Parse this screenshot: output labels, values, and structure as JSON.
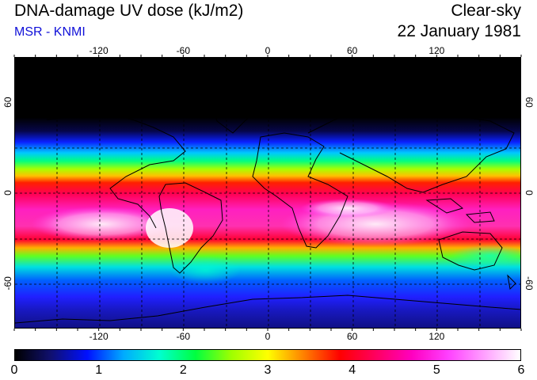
{
  "header": {
    "title": "DNA-damage UV dose (kJ/m2)",
    "credit": "MSR - KNMI",
    "sky_condition": "Clear-sky",
    "date": "22 January 1981"
  },
  "map": {
    "longitude_ticks": [
      "-120",
      "-60",
      "0",
      "60",
      "120"
    ],
    "longitude_values": [
      -120,
      -60,
      0,
      60,
      120
    ],
    "latitude_ticks": [
      "60",
      "0",
      "-60"
    ],
    "latitude_values": [
      60,
      0,
      -60
    ],
    "lon_range": [
      -180,
      180
    ],
    "lat_range": [
      -90,
      90
    ],
    "grid": "dashed 30-degree graticule"
  },
  "colorbar": {
    "labels": [
      "0",
      "1",
      "2",
      "3",
      "4",
      "5",
      "6"
    ],
    "min": 0,
    "max": 6,
    "colors": [
      "#000000",
      "#101070",
      "#0010ff",
      "#00aaff",
      "#00ffd0",
      "#00ff40",
      "#a0ff00",
      "#ffff00",
      "#ff8000",
      "#ff0000",
      "#ff0060",
      "#ff00c0",
      "#ff40ff",
      "#ffa0ff",
      "#ffffff"
    ]
  },
  "colors": {
    "credit": "#1010d8",
    "coastline": "#000000"
  }
}
